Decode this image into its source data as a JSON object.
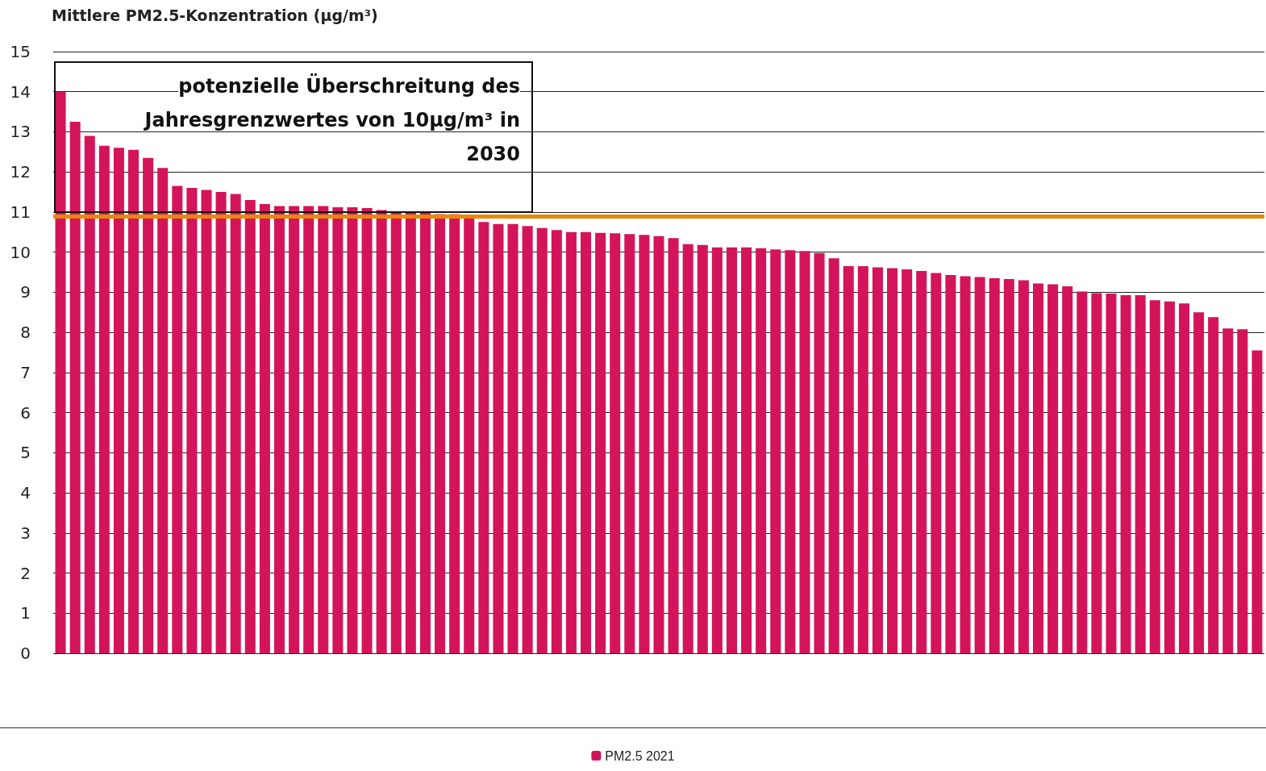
{
  "chart_data": {
    "type": "bar",
    "ylabel": "Mittlere PM2.5-Konzentration (µg/m³)",
    "categories": [
      null,
      null,
      null,
      null,
      null,
      null,
      null,
      null,
      null,
      null,
      null,
      null,
      null,
      null,
      null,
      null,
      null,
      null,
      null,
      null,
      null,
      null,
      null,
      null,
      null,
      null,
      null,
      null,
      null,
      null,
      null,
      null,
      null,
      null,
      null,
      null,
      null,
      null,
      null,
      null,
      null,
      null,
      null,
      null,
      null,
      null,
      null,
      null,
      null,
      null,
      null,
      null,
      null,
      null,
      null,
      null,
      null,
      null,
      null,
      null,
      null,
      null,
      null,
      null,
      null,
      null,
      null,
      null,
      null,
      null,
      null,
      null,
      null,
      null,
      null,
      null,
      null,
      null,
      null,
      null,
      null,
      null,
      null
    ],
    "series": [
      {
        "name": "PM2.5 2021",
        "color": "#d4145a",
        "values": [
          14.0,
          13.25,
          12.9,
          12.65,
          12.6,
          12.55,
          12.35,
          12.1,
          11.65,
          11.6,
          11.55,
          11.5,
          11.45,
          11.3,
          11.2,
          11.15,
          11.15,
          11.15,
          11.15,
          11.12,
          11.12,
          11.1,
          11.05,
          11.02,
          11.0,
          10.98,
          10.95,
          10.95,
          10.93,
          10.75,
          10.7,
          10.7,
          10.65,
          10.6,
          10.55,
          10.5,
          10.5,
          10.48,
          10.47,
          10.45,
          10.43,
          10.4,
          10.35,
          10.2,
          10.18,
          10.12,
          10.12,
          10.12,
          10.1,
          10.07,
          10.05,
          10.03,
          9.98,
          9.85,
          9.65,
          9.65,
          9.62,
          9.6,
          9.57,
          9.53,
          9.48,
          9.43,
          9.4,
          9.38,
          9.35,
          9.33,
          9.3,
          9.22,
          9.2,
          9.15,
          9.02,
          8.98,
          8.97,
          8.93,
          8.93,
          8.8,
          8.77,
          8.72,
          8.5,
          8.38,
          8.1,
          8.08,
          7.55
        ]
      }
    ],
    "ylim": [
      0,
      15
    ],
    "yticks": [
      0,
      1,
      2,
      3,
      4,
      5,
      6,
      7,
      8,
      9,
      10,
      11,
      12,
      13,
      14,
      15
    ],
    "grid": "y",
    "legend": "bottom",
    "ref_lines": [
      {
        "axis": "y",
        "value": 10.9,
        "color": "#e8890c"
      }
    ],
    "annotations": [
      "potenzielle Überschreitung des Jahresgrenzwertes von 10µg/m³ in 2030"
    ]
  }
}
